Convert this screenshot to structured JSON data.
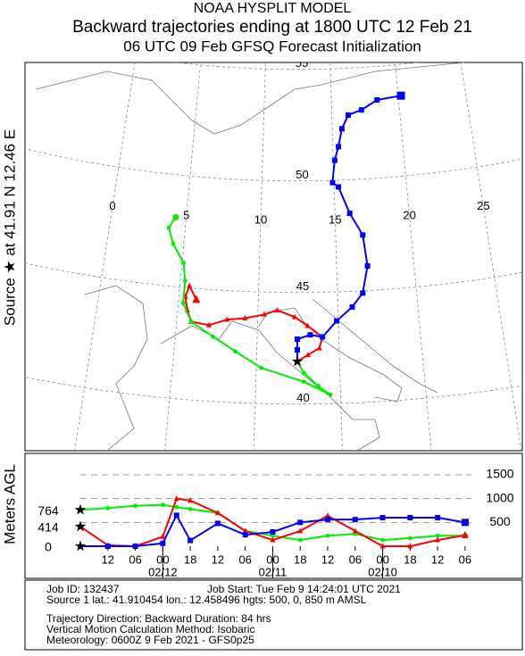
{
  "header": {
    "title": "NOAA HYSPLIT MODEL",
    "subtitle": "Backward trajectories ending at 1800 UTC 12 Feb 21",
    "subtitle2": "06 UTC 09 Feb    GFSQ  Forecast Initialization"
  },
  "side_label": "Source ★ at   41.91 N   12.46 E",
  "map": {
    "source": {
      "lat": 41.91,
      "lon": 12.46
    },
    "lon_labels": [
      0,
      5,
      10,
      15,
      20,
      25
    ],
    "lat_labels": [
      40,
      45,
      50,
      55
    ],
    "trajectories": [
      {
        "color": "#ff0000",
        "marker": "triangle",
        "lat": [
          41.91,
          42.2,
          42.5,
          43.0,
          43.5,
          43.9,
          44.2,
          44.0,
          43.8,
          43.7,
          43.4,
          43.5,
          44.0,
          44.6,
          45.1,
          44.5
        ],
        "lon": [
          12.46,
          13.1,
          13.8,
          14.0,
          13.1,
          12.3,
          11.2,
          10.4,
          9.2,
          8.1,
          7.0,
          5.9,
          5.6,
          5.4,
          5.6,
          6.1
        ]
      },
      {
        "color": "#0000ff",
        "marker": "square",
        "lat": [
          41.91,
          42.43,
          42.91,
          43.1,
          43.0,
          43.7,
          44.3,
          44.9,
          46.1,
          47.5,
          48.5,
          49.7,
          49.9,
          50.9,
          51.5,
          52.3,
          52.9,
          53.1,
          53.5,
          53.6
        ],
        "lon": [
          12.46,
          12.46,
          12.46,
          13.25,
          14.0,
          14.9,
          15.9,
          16.6,
          17.0,
          16.8,
          16.0,
          15.3,
          14.9,
          15.1,
          15.4,
          15.7,
          16.2,
          17.2,
          18.4,
          20.2
        ]
      },
      {
        "color": "#00ee00",
        "marker": "circle",
        "lat": [
          41.91,
          41.4,
          40.8,
          40.4,
          41.0,
          41.6,
          42.3,
          42.9,
          43.5,
          44.3,
          45.3,
          46.1,
          46.9,
          47.6,
          48.1
        ],
        "lon": [
          12.46,
          12.85,
          13.7,
          14.4,
          12.85,
          10.3,
          8.7,
          7.3,
          5.9,
          5.3,
          5.3,
          5.1,
          4.3,
          3.9,
          4.3
        ]
      }
    ]
  },
  "height_chart": {
    "y_label": "Meters AGL",
    "yticks": [
      0,
      500,
      1000,
      1500
    ],
    "x": [
      0,
      6,
      12,
      18,
      21,
      24,
      30,
      36,
      42,
      48,
      54,
      60,
      66,
      72,
      78,
      84
    ],
    "xticks": [
      {
        "value": 6,
        "label": "12"
      },
      {
        "value": 12,
        "label": "06"
      },
      {
        "value": 18,
        "label": "00"
      },
      {
        "value": 24,
        "label": "18"
      },
      {
        "value": 30,
        "label": "12"
      },
      {
        "value": 36,
        "label": "06"
      },
      {
        "value": 42,
        "label": "00"
      },
      {
        "value": 48,
        "label": "18"
      },
      {
        "value": 54,
        "label": "12"
      },
      {
        "value": 60,
        "label": "06"
      },
      {
        "value": 66,
        "label": "00"
      },
      {
        "value": 72,
        "label": "18"
      },
      {
        "value": 78,
        "label": "12"
      },
      {
        "value": 84,
        "label": "06"
      }
    ],
    "date_labels": [
      {
        "value": 18,
        "label": "02/12"
      },
      {
        "value": 42,
        "label": "02/11"
      },
      {
        "value": 66,
        "label": "02/10"
      }
    ],
    "series": [
      {
        "color": "#00ee00",
        "marker": "circle",
        "values": [
          764,
          800,
          850,
          870,
          820,
          780,
          700,
          320,
          220,
          130,
          220,
          260,
          130,
          170,
          220,
          220
        ]
      },
      {
        "color": "#ff0000",
        "marker": "triangle",
        "values": [
          414,
          20,
          0,
          200,
          1000,
          960,
          700,
          320,
          130,
          320,
          640,
          320,
          0,
          0,
          130,
          230
        ]
      },
      {
        "color": "#0000ff",
        "marker": "square",
        "values": [
          0,
          0,
          0,
          60,
          650,
          120,
          480,
          240,
          300,
          500,
          560,
          560,
          600,
          600,
          600,
          500
        ]
      }
    ]
  },
  "footer": {
    "job_id": "Job ID: 132437",
    "job_start": "Job Start: Tue Feb  9 14:24:01 UTC 2021",
    "source": "Source 1 lat.: 41.910454  lon.: 12.458496  hgts: 500, 0, 850 m AMSL",
    "direction": "Trajectory Direction: Backward       Duration: 84 hrs",
    "vertical": "Vertical Motion Calculation Method:       Isobaric",
    "meteorology": "Meteorology: 0600Z  9 Feb 2021 - GFS0p25"
  }
}
